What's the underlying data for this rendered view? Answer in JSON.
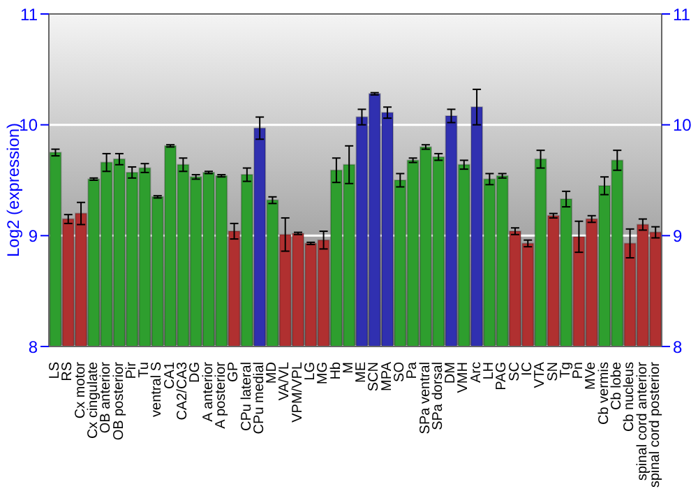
{
  "chart_data": {
    "type": "bar",
    "ylabel": "Log2 (expression)",
    "categories": [
      "LS",
      "RS",
      "Cx motor",
      "Cx cingulate",
      "OB anterior",
      "OB posterior",
      "Pir",
      "Tu",
      "ventral S",
      "CA1",
      "CA2/CA3",
      "DG",
      "A anterior",
      "A posterior",
      "GP",
      "CPu lateral",
      "CPu medial",
      "MD",
      "VA/VL",
      "VPM/VPL",
      "LG",
      "MG",
      "Hb",
      "M",
      "ME",
      "SCN",
      "MPA",
      "SO",
      "Pa",
      "SPa ventral",
      "SPa dorsal",
      "DM",
      "VMH",
      "Arc",
      "LH",
      "PAG",
      "SC",
      "IC",
      "VTA",
      "SN",
      "Tg",
      "Pn",
      "MVe",
      "Cb vermis",
      "Cb lobe",
      "Cb nucleus",
      "spinal cord anterior",
      "spinal cord posterior"
    ],
    "values": [
      9.75,
      9.15,
      9.2,
      9.51,
      9.66,
      9.69,
      9.57,
      9.61,
      9.35,
      9.81,
      9.64,
      9.53,
      9.57,
      9.54,
      9.04,
      9.55,
      9.97,
      9.32,
      9.01,
      9.02,
      8.93,
      8.96,
      9.59,
      9.64,
      10.07,
      10.28,
      10.11,
      9.5,
      9.68,
      9.8,
      9.71,
      10.08,
      9.64,
      10.16,
      9.51,
      9.54,
      9.04,
      8.93,
      9.69,
      9.18,
      9.33,
      8.99,
      9.15,
      9.45,
      9.68,
      8.93,
      9.1,
      9.03
    ],
    "errors": [
      0.03,
      0.04,
      0.1,
      0.01,
      0.08,
      0.05,
      0.05,
      0.04,
      0.01,
      0.01,
      0.06,
      0.02,
      0.01,
      0.01,
      0.07,
      0.06,
      0.1,
      0.03,
      0.15,
      0.01,
      0.01,
      0.08,
      0.11,
      0.17,
      0.07,
      0.01,
      0.05,
      0.06,
      0.02,
      0.02,
      0.03,
      0.06,
      0.04,
      0.16,
      0.05,
      0.02,
      0.03,
      0.03,
      0.08,
      0.02,
      0.07,
      0.14,
      0.03,
      0.08,
      0.09,
      0.13,
      0.05,
      0.05
    ],
    "colors": [
      "#2e9e2e",
      "#b03030",
      "#b03030",
      "#2e9e2e",
      "#2e9e2e",
      "#2e9e2e",
      "#2e9e2e",
      "#2e9e2e",
      "#2e9e2e",
      "#2e9e2e",
      "#2e9e2e",
      "#2e9e2e",
      "#2e9e2e",
      "#2e9e2e",
      "#b03030",
      "#2e9e2e",
      "#3030b0",
      "#2e9e2e",
      "#b03030",
      "#b03030",
      "#b03030",
      "#b03030",
      "#2e9e2e",
      "#2e9e2e",
      "#3030b0",
      "#3030b0",
      "#3030b0",
      "#2e9e2e",
      "#2e9e2e",
      "#2e9e2e",
      "#2e9e2e",
      "#3030b0",
      "#2e9e2e",
      "#3030b0",
      "#2e9e2e",
      "#2e9e2e",
      "#b03030",
      "#b03030",
      "#2e9e2e",
      "#b03030",
      "#2e9e2e",
      "#b03030",
      "#b03030",
      "#2e9e2e",
      "#2e9e2e",
      "#b03030",
      "#b03030",
      "#b03030"
    ],
    "ylim": [
      8,
      11
    ],
    "yticks": [
      8,
      9,
      10,
      11
    ],
    "y2lim": [
      8,
      11
    ],
    "y2ticks": [
      8,
      9,
      10,
      11
    ],
    "grid": "y"
  }
}
